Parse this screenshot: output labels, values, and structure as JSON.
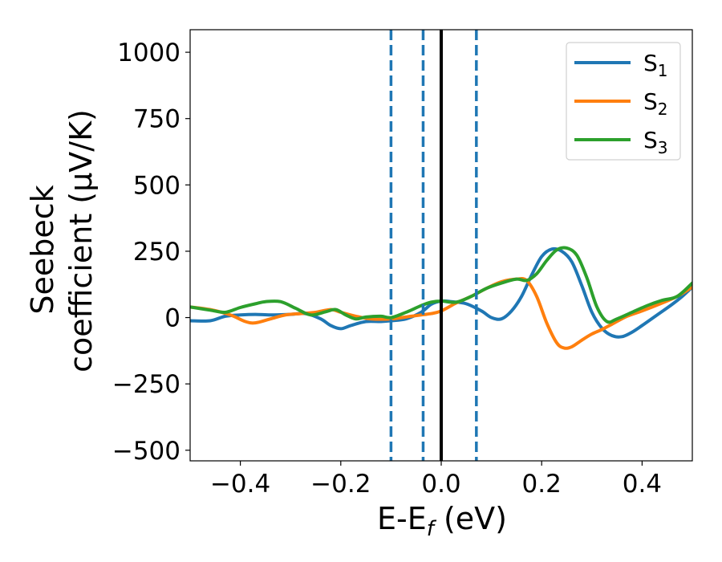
{
  "chart_data": {
    "type": "line",
    "xlabel": "E-E",
    "xlabel_sub": "f",
    "xlabel_unit": " (eV)",
    "ylabel_line1": "Seebeck",
    "ylabel_line2": "coefficient  (μV/K)",
    "xlim": [
      -0.5,
      0.5
    ],
    "ylim": [
      -540,
      1085
    ],
    "xticks": [
      -0.4,
      -0.2,
      0.0,
      0.2,
      0.4
    ],
    "xtick_labels": [
      "−0.4",
      "−0.2",
      "0.0",
      "0.2",
      "0.4"
    ],
    "yticks": [
      -500,
      -250,
      0,
      250,
      500,
      750,
      1000
    ],
    "ytick_labels": [
      "−500",
      "−250",
      "0",
      "250",
      "500",
      "750",
      "1000"
    ],
    "grid": false,
    "legend_position": "top-right",
    "vlines": [
      {
        "x": -0.1,
        "style": "dashed",
        "color": "#1f77b4"
      },
      {
        "x": -0.036,
        "style": "dashed",
        "color": "#1f77b4"
      },
      {
        "x": 0.0,
        "style": "solid",
        "color": "#000000"
      },
      {
        "x": 0.07,
        "style": "dashed",
        "color": "#1f77b4"
      }
    ],
    "series": [
      {
        "name": "S",
        "sub": "1",
        "color": "#1f77b4",
        "x": [
          -0.5,
          -0.46,
          -0.43,
          -0.4,
          -0.37,
          -0.34,
          -0.3,
          -0.27,
          -0.24,
          -0.22,
          -0.2,
          -0.18,
          -0.15,
          -0.12,
          -0.1,
          -0.07,
          -0.04,
          -0.02,
          0.0,
          0.02,
          0.05,
          0.08,
          0.1,
          0.12,
          0.14,
          0.16,
          0.18,
          0.2,
          0.22,
          0.24,
          0.26,
          0.28,
          0.3,
          0.32,
          0.34,
          0.36,
          0.38,
          0.4,
          0.43,
          0.46,
          0.48,
          0.5
        ],
        "y": [
          -12,
          -12,
          5,
          10,
          12,
          10,
          12,
          15,
          -5,
          -30,
          -42,
          -30,
          -15,
          -15,
          -12,
          -5,
          20,
          50,
          62,
          60,
          52,
          25,
          0,
          -5,
          25,
          80,
          160,
          230,
          258,
          250,
          210,
          120,
          20,
          -40,
          -68,
          -72,
          -55,
          -30,
          10,
          50,
          80,
          115
        ]
      },
      {
        "name": "S",
        "sub": "2",
        "color": "#ff7f0e",
        "x": [
          -0.5,
          -0.46,
          -0.42,
          -0.39,
          -0.37,
          -0.34,
          -0.31,
          -0.28,
          -0.25,
          -0.22,
          -0.2,
          -0.17,
          -0.14,
          -0.1,
          -0.06,
          -0.02,
          0.0,
          0.03,
          0.06,
          0.09,
          0.12,
          0.15,
          0.17,
          0.19,
          0.21,
          0.23,
          0.245,
          0.26,
          0.28,
          0.3,
          0.32,
          0.34,
          0.37,
          0.4,
          0.44,
          0.47,
          0.5
        ],
        "y": [
          40,
          30,
          10,
          -15,
          -20,
          -5,
          10,
          15,
          20,
          30,
          20,
          5,
          -5,
          -5,
          5,
          15,
          25,
          55,
          80,
          110,
          135,
          145,
          140,
          80,
          -20,
          -95,
          -115,
          -110,
          -85,
          -62,
          -45,
          -25,
          5,
          25,
          55,
          80,
          115
        ]
      },
      {
        "name": "S",
        "sub": "3",
        "color": "#2ca02c",
        "x": [
          -0.5,
          -0.46,
          -0.43,
          -0.4,
          -0.37,
          -0.35,
          -0.32,
          -0.29,
          -0.26,
          -0.23,
          -0.21,
          -0.19,
          -0.17,
          -0.15,
          -0.12,
          -0.1,
          -0.07,
          -0.04,
          -0.02,
          0.0,
          0.03,
          0.06,
          0.09,
          0.12,
          0.15,
          0.17,
          0.19,
          0.21,
          0.23,
          0.25,
          0.27,
          0.29,
          0.31,
          0.33,
          0.35,
          0.38,
          0.41,
          0.44,
          0.47,
          0.5
        ],
        "y": [
          40,
          28,
          20,
          38,
          52,
          60,
          60,
          35,
          10,
          22,
          30,
          10,
          -5,
          2,
          5,
          0,
          20,
          45,
          58,
          62,
          58,
          80,
          110,
          130,
          145,
          140,
          165,
          215,
          255,
          262,
          235,
          150,
          40,
          -15,
          -5,
          20,
          45,
          65,
          80,
          130
        ]
      }
    ]
  }
}
